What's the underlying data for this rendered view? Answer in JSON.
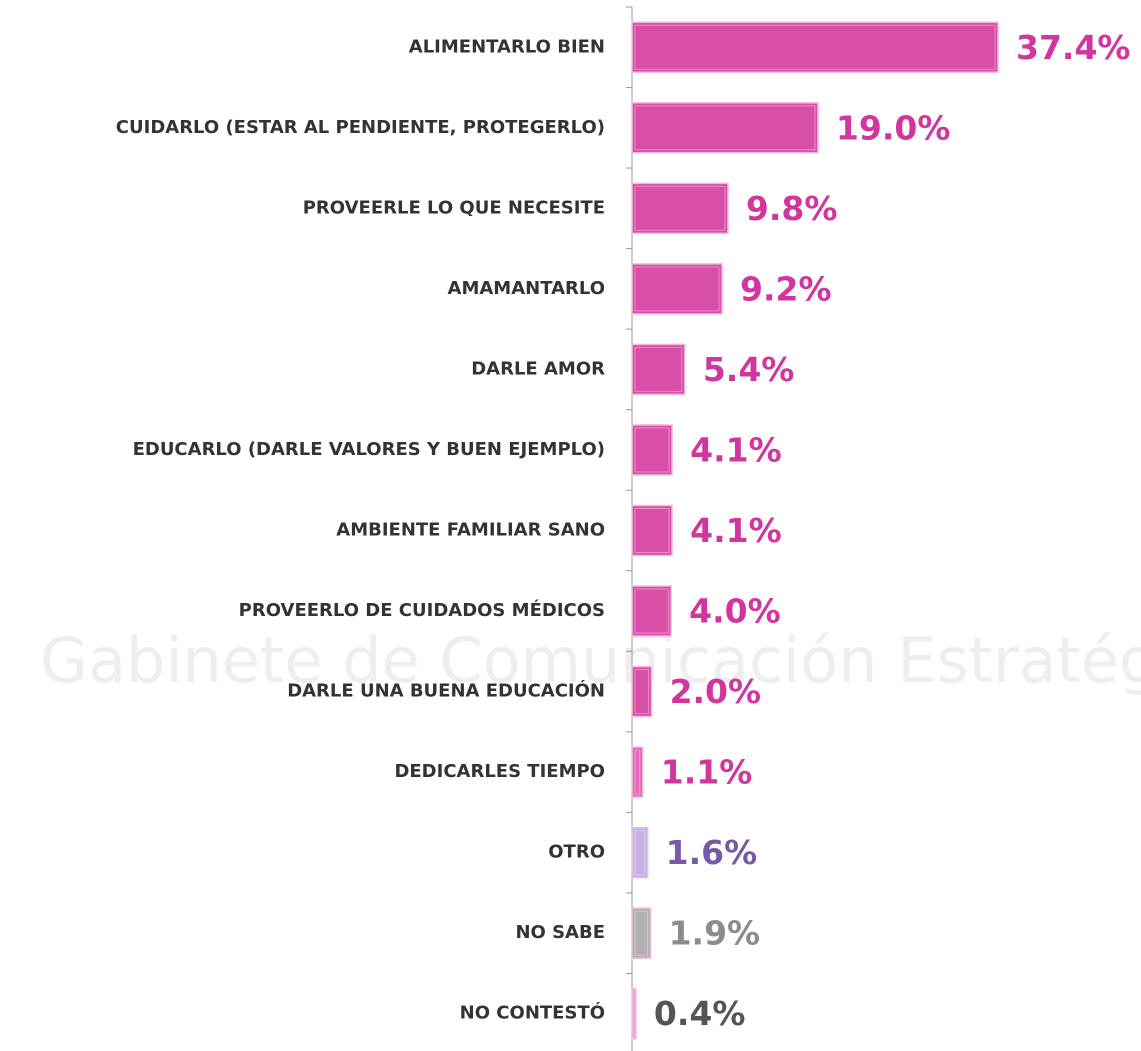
{
  "chart_data": {
    "type": "bar",
    "orientation": "horizontal",
    "watermark": "Gabinete de Comunicación Estratégica",
    "categories": [
      "ALIMENTARLO BIEN",
      "CUIDARLO (ESTAR AL PENDIENTE, PROTEGERLO)",
      "PROVEERLE LO QUE NECESITE",
      "AMAMANTARLO",
      "DARLE AMOR",
      "EDUCARLO (DARLE VALORES Y BUEN EJEMPLO)",
      "AMBIENTE FAMILIAR SANO",
      "PROVEERLO DE CUIDADOS MÉDICOS",
      "DARLE UNA BUENA EDUCACIÓN",
      "DEDICARLES TIEMPO",
      "OTRO",
      "NO SABE",
      "NO CONTESTÓ"
    ],
    "values": [
      37.4,
      19.0,
      9.8,
      9.2,
      5.4,
      4.1,
      4.1,
      4.0,
      2.0,
      1.1,
      1.6,
      1.9,
      0.4
    ],
    "value_labels": [
      "37.4%",
      "19.0%",
      "9.8%",
      "9.2%",
      "5.4%",
      "4.1%",
      "4.1%",
      "4.0%",
      "2.0%",
      "1.1%",
      "1.6%",
      "1.9%",
      "0.4%"
    ],
    "colors": [
      "#d94fa8",
      "#d94fa8",
      "#d94fa8",
      "#d94fa8",
      "#d94fa8",
      "#d94fa8",
      "#d94fa8",
      "#d94fa8",
      "#d94fa8",
      "#e46ab8",
      "#c3b2e6",
      "#b0b0b0",
      "#f0a6d6"
    ],
    "label_colors": [
      "#d1359e",
      "#d1359e",
      "#d1359e",
      "#d1359e",
      "#d1359e",
      "#d1359e",
      "#d1359e",
      "#d1359e",
      "#d1359e",
      "#d1359e",
      "#7a5aa6",
      "#8c8c8c",
      "#555555"
    ]
  }
}
